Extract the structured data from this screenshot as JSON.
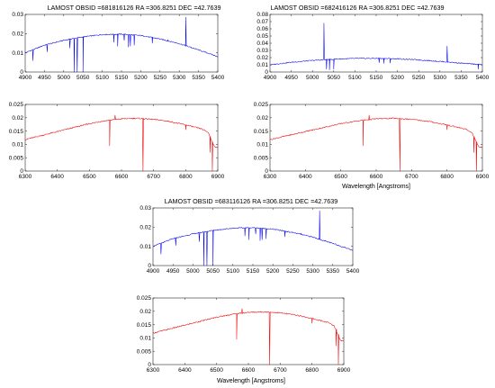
{
  "figure": {
    "panel_titles": [
      "LAMOST OBSID =681816126 RA =306.8251   DEC =42.7639",
      "LAMOST OBSID =682416126 RA =306.8251   DEC =42.7639",
      "LAMOST OBSID =683116126 RA =306.8251   DEC =42.7639"
    ],
    "xlabel": "Wavelength [Angstroms]"
  },
  "colors": {
    "blue_band": "#0000ee",
    "red_band": "#ee0000",
    "axis": "#262626"
  },
  "chart_data": [
    {
      "type": "line",
      "band": "blue",
      "title": "LAMOST OBSID =681816126 RA =306.8251   DEC =42.7639",
      "xlim": [
        4900,
        5400
      ],
      "ylim": [
        0,
        0.03
      ],
      "xticks": [
        4900,
        4950,
        5000,
        5050,
        5100,
        5150,
        5200,
        5250,
        5300,
        5350,
        5400
      ],
      "yticks": [
        0,
        0.01,
        0.02,
        0.03
      ],
      "xlabel": "",
      "ylabel": "",
      "continuum": [
        [
          4900,
          0.01
        ],
        [
          4950,
          0.014
        ],
        [
          5000,
          0.0165
        ],
        [
          5050,
          0.0183
        ],
        [
          5100,
          0.0195
        ],
        [
          5150,
          0.0197
        ],
        [
          5200,
          0.019
        ],
        [
          5250,
          0.0172
        ],
        [
          5300,
          0.0148
        ],
        [
          5350,
          0.0115
        ],
        [
          5400,
          0.008
        ]
      ],
      "features": [
        [
          4920,
          0.006
        ],
        [
          4957,
          0.0105
        ],
        [
          5016,
          0.0125
        ],
        [
          5027,
          0.0
        ],
        [
          5035,
          0.0
        ],
        [
          5050,
          0.0
        ],
        [
          5130,
          0.0155
        ],
        [
          5140,
          0.0135
        ],
        [
          5157,
          0.0165
        ],
        [
          5168,
          0.013
        ],
        [
          5173,
          0.0135
        ],
        [
          5183,
          0.014
        ],
        [
          5230,
          0.015
        ],
        [
          5270,
          0.0168
        ],
        [
          5317,
          0.0285
        ],
        [
          5330,
          0.013
        ]
      ]
    },
    {
      "type": "line",
      "band": "red",
      "xlim": [
        6300,
        6900
      ],
      "ylim": [
        0,
        0.025
      ],
      "xticks": [
        6300,
        6400,
        6500,
        6600,
        6700,
        6800,
        6900
      ],
      "yticks": [
        0,
        0.005,
        0.01,
        0.015,
        0.02,
        0.025
      ],
      "xlabel": "",
      "ylabel": "",
      "continuum": [
        [
          6300,
          0.0118
        ],
        [
          6350,
          0.0133
        ],
        [
          6400,
          0.0148
        ],
        [
          6450,
          0.0163
        ],
        [
          6500,
          0.0178
        ],
        [
          6550,
          0.0189
        ],
        [
          6600,
          0.0196
        ],
        [
          6650,
          0.0198
        ],
        [
          6700,
          0.0194
        ],
        [
          6750,
          0.0186
        ],
        [
          6800,
          0.0173
        ],
        [
          6850,
          0.0158
        ],
        [
          6870,
          0.0145
        ],
        [
          6890,
          0.009
        ]
      ],
      "features": [
        [
          6563,
          0.0095
        ],
        [
          6580,
          0.021
        ],
        [
          6667,
          0.0
        ],
        [
          6800,
          0.0155
        ],
        [
          6876,
          0.007
        ],
        [
          6883,
          0.0
        ]
      ]
    },
    {
      "type": "line",
      "band": "blue",
      "title": "LAMOST OBSID =682416126 RA =306.8251   DEC =42.7639",
      "xlim": [
        4900,
        5400
      ],
      "ylim": [
        0,
        0.08
      ],
      "xticks": [
        4900,
        4950,
        5000,
        5050,
        5100,
        5150,
        5200,
        5250,
        5300,
        5350,
        5400
      ],
      "yticks": [
        0,
        0.01,
        0.02,
        0.03,
        0.04,
        0.05,
        0.06,
        0.07,
        0.08
      ],
      "xlabel": "",
      "ylabel": "",
      "continuum": [
        [
          4900,
          0.01
        ],
        [
          4950,
          0.0135
        ],
        [
          5000,
          0.016
        ],
        [
          5050,
          0.0178
        ],
        [
          5100,
          0.0188
        ],
        [
          5150,
          0.019
        ],
        [
          5200,
          0.0183
        ],
        [
          5250,
          0.0168
        ],
        [
          5300,
          0.0148
        ],
        [
          5350,
          0.0123
        ],
        [
          5400,
          0.0102
        ]
      ],
      "features": [
        [
          5027,
          0.068
        ],
        [
          5033,
          0.004
        ],
        [
          5040,
          0.003
        ],
        [
          5050,
          0.004
        ],
        [
          5157,
          0.013
        ],
        [
          5168,
          0.012
        ],
        [
          5183,
          0.0125
        ],
        [
          5317,
          0.036
        ],
        [
          5390,
          0.004
        ]
      ]
    },
    {
      "type": "line",
      "band": "red",
      "xlim": [
        6300,
        6900
      ],
      "ylim": [
        0,
        0.025
      ],
      "xticks": [
        6300,
        6400,
        6500,
        6600,
        6700,
        6800,
        6900
      ],
      "yticks": [
        0,
        0.005,
        0.01,
        0.015,
        0.02,
        0.025
      ],
      "xlabel": "Wavelength [Angstroms]",
      "ylabel": "",
      "continuum": [
        [
          6300,
          0.0118
        ],
        [
          6350,
          0.0133
        ],
        [
          6400,
          0.0148
        ],
        [
          6450,
          0.0163
        ],
        [
          6500,
          0.0178
        ],
        [
          6550,
          0.0189
        ],
        [
          6600,
          0.0196
        ],
        [
          6650,
          0.0198
        ],
        [
          6700,
          0.0194
        ],
        [
          6750,
          0.0186
        ],
        [
          6800,
          0.0173
        ],
        [
          6850,
          0.0158
        ],
        [
          6870,
          0.0145
        ],
        [
          6890,
          0.009
        ]
      ],
      "features": [
        [
          6563,
          0.0095
        ],
        [
          6580,
          0.021
        ],
        [
          6667,
          0.0
        ],
        [
          6800,
          0.0155
        ],
        [
          6876,
          0.007
        ],
        [
          6883,
          0.0
        ]
      ]
    },
    {
      "type": "line",
      "band": "blue",
      "title": "LAMOST OBSID =683116126 RA =306.8251   DEC =42.7639",
      "xlim": [
        4900,
        5400
      ],
      "ylim": [
        0,
        0.03
      ],
      "xticks": [
        4900,
        4950,
        5000,
        5050,
        5100,
        5150,
        5200,
        5250,
        5300,
        5350,
        5400
      ],
      "yticks": [
        0,
        0.01,
        0.02,
        0.03
      ],
      "xlabel": "",
      "ylabel": "",
      "continuum": [
        [
          4900,
          0.01
        ],
        [
          4950,
          0.014
        ],
        [
          5000,
          0.0165
        ],
        [
          5050,
          0.0183
        ],
        [
          5100,
          0.0195
        ],
        [
          5150,
          0.0197
        ],
        [
          5200,
          0.019
        ],
        [
          5250,
          0.0172
        ],
        [
          5300,
          0.0148
        ],
        [
          5350,
          0.0115
        ],
        [
          5400,
          0.008
        ]
      ],
      "features": [
        [
          4920,
          0.006
        ],
        [
          4957,
          0.0105
        ],
        [
          5016,
          0.0125
        ],
        [
          5027,
          0.0
        ],
        [
          5035,
          0.0
        ],
        [
          5050,
          0.0
        ],
        [
          5130,
          0.0155
        ],
        [
          5140,
          0.0135
        ],
        [
          5157,
          0.0165
        ],
        [
          5168,
          0.013
        ],
        [
          5173,
          0.0135
        ],
        [
          5183,
          0.014
        ],
        [
          5230,
          0.015
        ],
        [
          5270,
          0.0168
        ],
        [
          5317,
          0.0285
        ],
        [
          5330,
          0.013
        ]
      ]
    },
    {
      "type": "line",
      "band": "red",
      "xlim": [
        6300,
        6900
      ],
      "ylim": [
        0,
        0.025
      ],
      "xticks": [
        6300,
        6400,
        6500,
        6600,
        6700,
        6800,
        6900
      ],
      "yticks": [
        0,
        0.005,
        0.01,
        0.015,
        0.02,
        0.025
      ],
      "xlabel": "Wavelength [Angstroms]",
      "ylabel": "",
      "continuum": [
        [
          6300,
          0.0118
        ],
        [
          6350,
          0.0133
        ],
        [
          6400,
          0.0148
        ],
        [
          6450,
          0.0163
        ],
        [
          6500,
          0.0178
        ],
        [
          6550,
          0.0189
        ],
        [
          6600,
          0.0196
        ],
        [
          6650,
          0.0198
        ],
        [
          6700,
          0.0194
        ],
        [
          6750,
          0.0186
        ],
        [
          6800,
          0.0173
        ],
        [
          6850,
          0.0158
        ],
        [
          6870,
          0.0145
        ],
        [
          6890,
          0.009
        ]
      ],
      "features": [
        [
          6563,
          0.0095
        ],
        [
          6580,
          0.021
        ],
        [
          6667,
          0.0
        ],
        [
          6800,
          0.0155
        ],
        [
          6876,
          0.007
        ],
        [
          6883,
          0.0
        ]
      ]
    }
  ]
}
